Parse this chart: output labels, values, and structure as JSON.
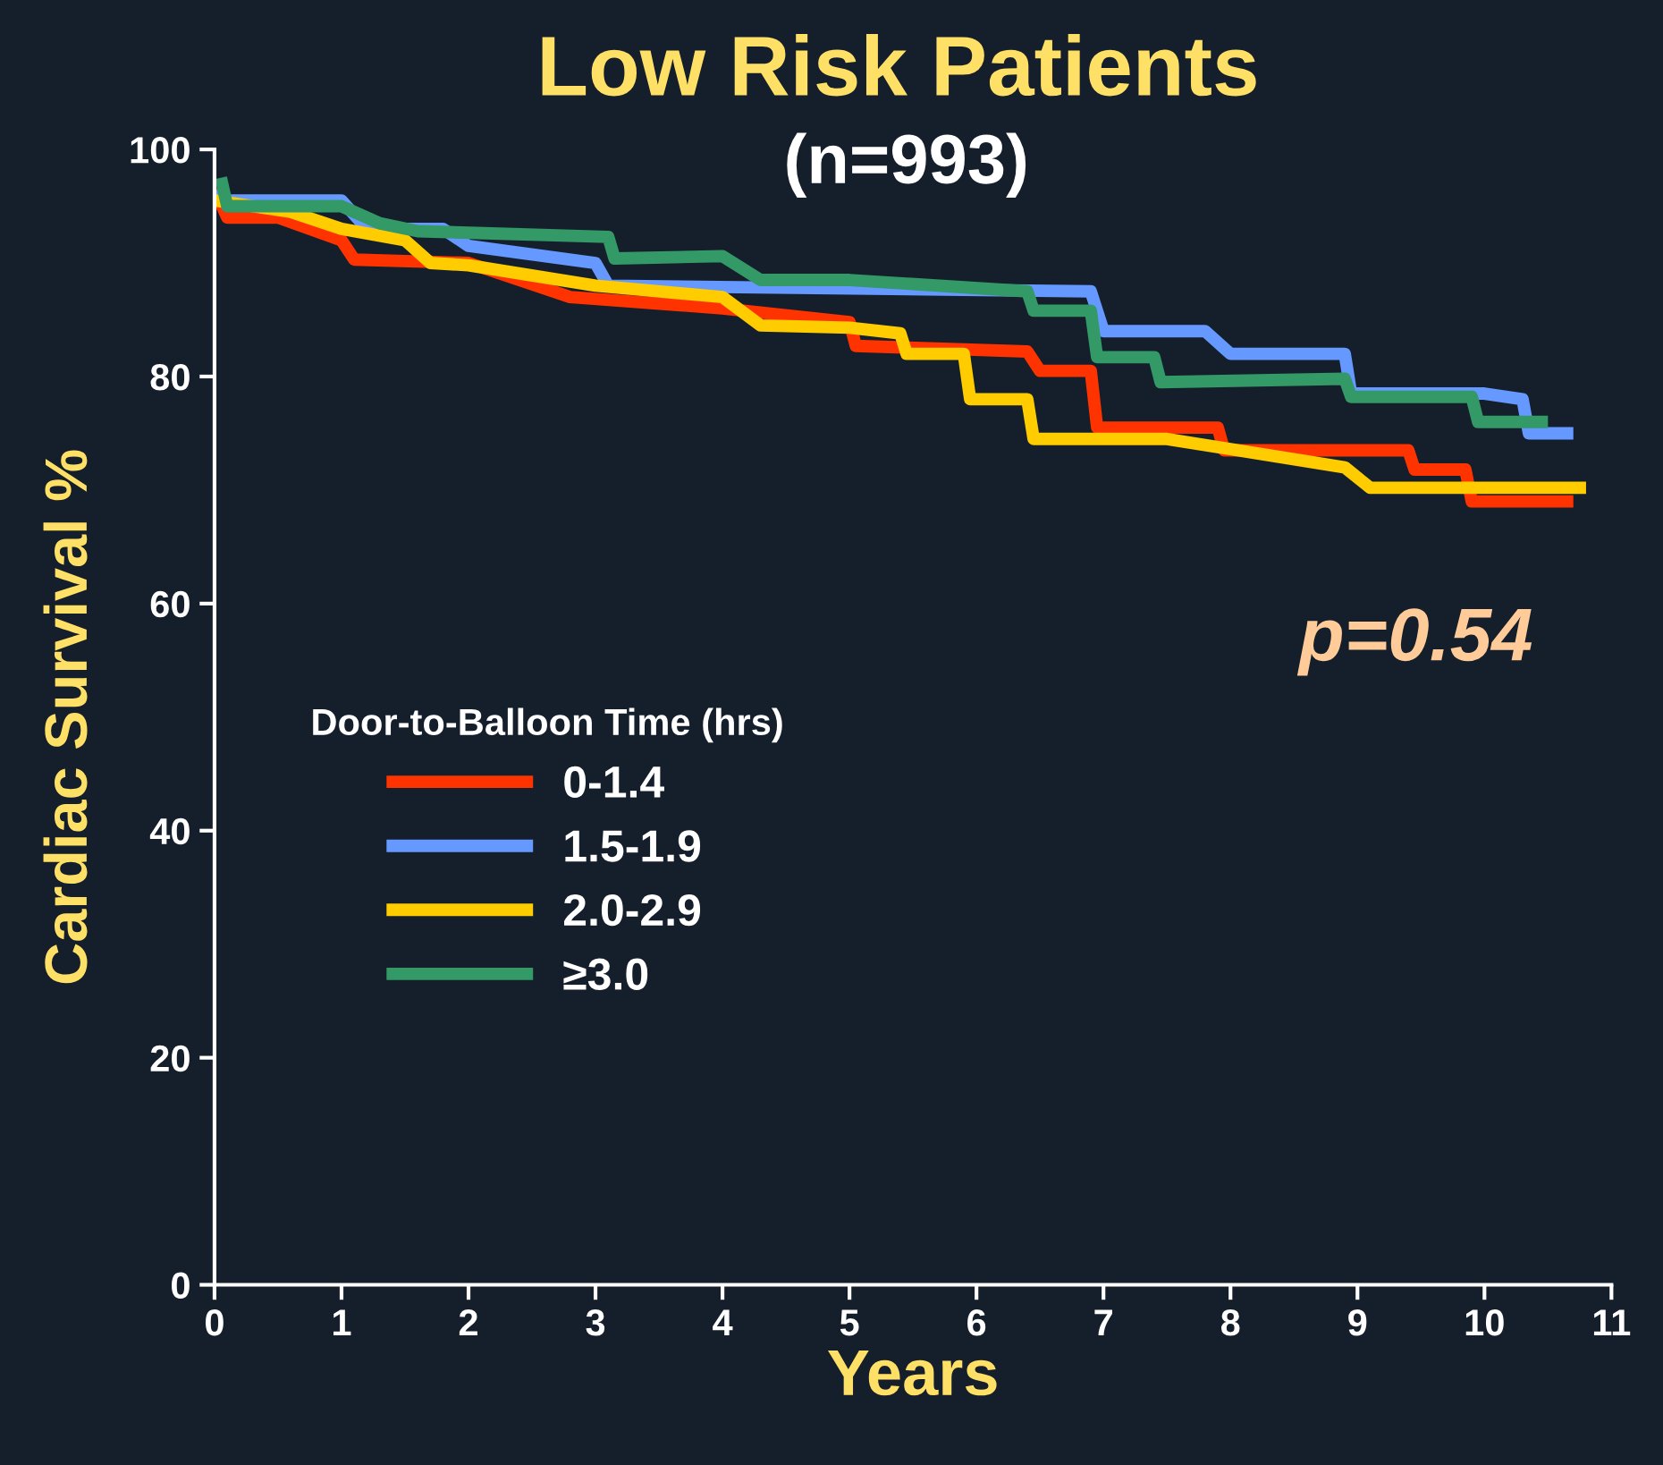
{
  "chart_data": {
    "type": "line",
    "title": "Low Risk Patients",
    "subtitle": "(n=993)",
    "xlabel": "Years",
    "ylabel": "Cardiac Survival %",
    "legend_title": "Door-to-Balloon Time (hrs)",
    "legend": "left",
    "grid": false,
    "marker": "none",
    "line_style": "solid",
    "xlim": [
      0,
      11
    ],
    "xticks": [
      0,
      1,
      2,
      3,
      4,
      5,
      6,
      7,
      8,
      9,
      10,
      11
    ],
    "ylim": [
      0,
      100
    ],
    "yticks": [
      0,
      20,
      40,
      60,
      80,
      100
    ],
    "annotations": [
      "p=0.54"
    ],
    "series": [
      {
        "name": "0-1.4",
        "color": "#ff3300",
        "x": [
          0,
          0.1,
          0.5,
          1,
          1.1,
          2,
          2.8,
          4,
          5,
          5.05,
          6.4,
          6.5,
          6.9,
          6.95,
          7.9,
          7.95,
          9.4,
          9.45,
          9.85,
          9.9,
          10.7
        ],
        "values": [
          96.5,
          94,
          94,
          92,
          90.3,
          90,
          87,
          86,
          84.8,
          82.7,
          82.2,
          80.5,
          80.5,
          75.5,
          75.5,
          73.5,
          73.5,
          71.8,
          71.8,
          69,
          69
        ]
      },
      {
        "name": "1.5-1.9",
        "color": "#6699ff",
        "x": [
          0,
          0.1,
          1,
          1.2,
          1.8,
          2,
          3,
          3.1,
          6.9,
          7,
          7.8,
          8,
          8.9,
          8.95,
          10,
          10.3,
          10.35,
          10.7
        ],
        "values": [
          96,
          95.5,
          95.5,
          93,
          93,
          91.5,
          90,
          88,
          87.5,
          84,
          84,
          82,
          82,
          78.5,
          78.5,
          78,
          75,
          75
        ]
      },
      {
        "name": "2.0-2.9",
        "color": "#ffcc00",
        "x": [
          0,
          0.6,
          1,
          1.5,
          1.7,
          2,
          3,
          4,
          4.3,
          5,
          5.4,
          5.45,
          5.9,
          5.95,
          6.4,
          6.45,
          7.5,
          8.9,
          9.1,
          10.8
        ],
        "values": [
          95.5,
          94.5,
          93,
          92,
          90,
          89.8,
          88,
          87,
          84.5,
          84.3,
          83.8,
          82,
          82,
          78,
          78,
          74.5,
          74.5,
          72,
          70.2,
          70.2
        ]
      },
      {
        "name": "≥3.0",
        "color": "#339966",
        "x": [
          0.05,
          0.1,
          1,
          1.3,
          1.6,
          3.1,
          3.15,
          4,
          4.3,
          5,
          6.4,
          6.45,
          6.9,
          6.95,
          7.4,
          7.45,
          8.9,
          8.95,
          9.9,
          9.95,
          10.5
        ],
        "values": [
          97.5,
          95,
          95,
          93.5,
          92.8,
          92.3,
          90.4,
          90.6,
          88.5,
          88.5,
          87.5,
          85.8,
          85.8,
          81.7,
          81.7,
          79.5,
          79.8,
          78.2,
          78.2,
          76,
          76
        ]
      }
    ]
  }
}
